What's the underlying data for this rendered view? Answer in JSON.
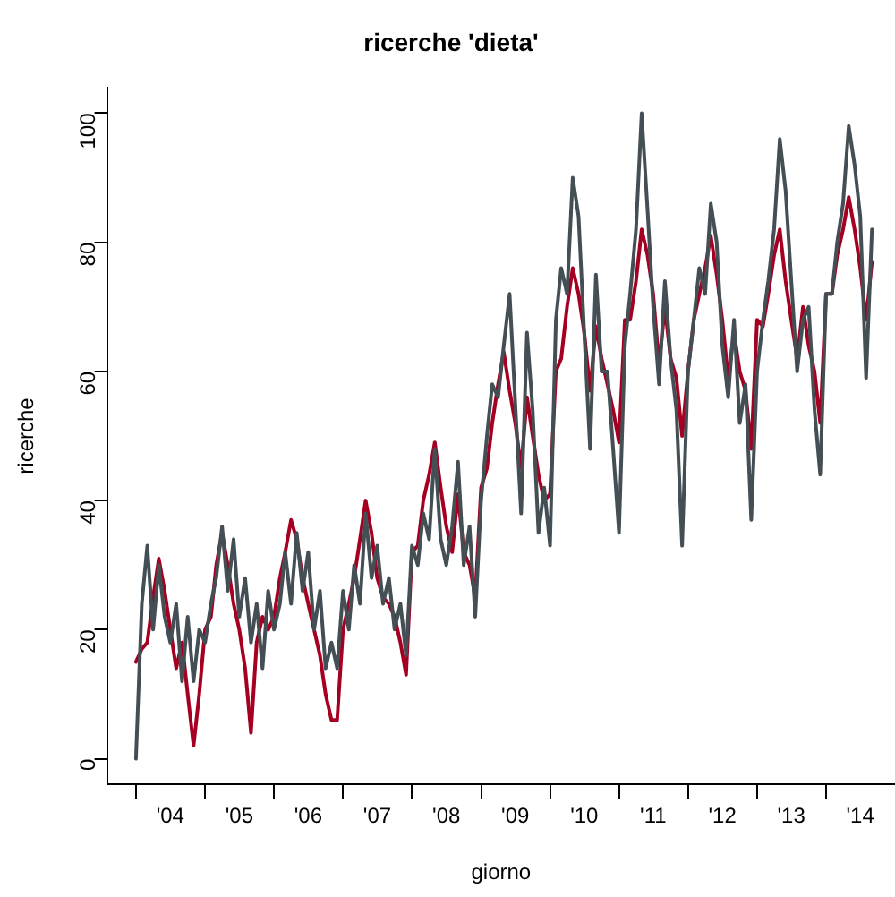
{
  "chart_data": {
    "type": "line",
    "title": "ricerche 'dieta'",
    "xlabel": "giorno",
    "ylabel": "ricerche",
    "x": [
      "2004-01",
      "2004-02",
      "2004-03",
      "2004-04",
      "2004-05",
      "2004-06",
      "2004-07",
      "2004-08",
      "2004-09",
      "2004-10",
      "2004-11",
      "2004-12",
      "2005-01",
      "2005-02",
      "2005-03",
      "2005-04",
      "2005-05",
      "2005-06",
      "2005-07",
      "2005-08",
      "2005-09",
      "2005-10",
      "2005-11",
      "2005-12",
      "2006-01",
      "2006-02",
      "2006-03",
      "2006-04",
      "2006-05",
      "2006-06",
      "2006-07",
      "2006-08",
      "2006-09",
      "2006-10",
      "2006-11",
      "2006-12",
      "2007-01",
      "2007-02",
      "2007-03",
      "2007-04",
      "2007-05",
      "2007-06",
      "2007-07",
      "2007-08",
      "2007-09",
      "2007-10",
      "2007-11",
      "2007-12",
      "2008-01",
      "2008-02",
      "2008-03",
      "2008-04",
      "2008-05",
      "2008-06",
      "2008-07",
      "2008-08",
      "2008-09",
      "2008-10",
      "2008-11",
      "2008-12",
      "2009-01",
      "2009-02",
      "2009-03",
      "2009-04",
      "2009-05",
      "2009-06",
      "2009-07",
      "2009-08",
      "2009-09",
      "2009-10",
      "2009-11",
      "2009-12",
      "2010-01",
      "2010-02",
      "2010-03",
      "2010-04",
      "2010-05",
      "2010-06",
      "2010-07",
      "2010-08",
      "2010-09",
      "2010-10",
      "2010-11",
      "2010-12",
      "2011-01",
      "2011-02",
      "2011-03",
      "2011-04",
      "2011-05",
      "2011-06",
      "2011-07",
      "2011-08",
      "2011-09",
      "2011-10",
      "2011-11",
      "2011-12",
      "2012-01",
      "2012-02",
      "2012-03",
      "2012-04",
      "2012-05",
      "2012-06",
      "2012-07",
      "2012-08",
      "2012-09",
      "2012-10",
      "2012-11",
      "2012-12",
      "2013-01",
      "2013-02",
      "2013-03",
      "2013-04",
      "2013-05",
      "2013-06",
      "2013-07",
      "2013-08",
      "2013-09",
      "2013-10",
      "2013-11",
      "2013-12",
      "2014-01",
      "2014-02",
      "2014-03",
      "2014-04",
      "2014-05",
      "2014-06",
      "2014-07",
      "2014-08",
      "2014-09"
    ],
    "series": [
      {
        "color": "#434f54",
        "values": [
          0,
          24,
          33,
          20,
          30,
          22,
          18,
          24,
          12,
          22,
          12,
          20,
          18,
          24,
          28,
          36,
          26,
          34,
          22,
          28,
          18,
          24,
          14,
          26,
          20,
          24,
          32,
          24,
          35,
          26,
          32,
          20,
          26,
          14,
          18,
          14,
          26,
          20,
          30,
          24,
          38,
          28,
          33,
          24,
          28,
          20,
          24,
          16,
          33,
          30,
          38,
          34,
          48,
          34,
          30,
          36,
          46,
          30,
          36,
          22,
          40,
          50,
          58,
          56,
          64,
          72,
          55,
          38,
          66,
          54,
          35,
          42,
          33,
          68,
          76,
          72,
          90,
          84,
          66,
          48,
          75,
          60,
          60,
          48,
          35,
          64,
          72,
          82,
          100,
          85,
          70,
          58,
          74,
          62,
          54,
          33,
          60,
          68,
          76,
          72,
          86,
          80,
          64,
          56,
          68,
          52,
          58,
          37,
          60,
          68,
          74,
          82,
          96,
          88,
          74,
          60,
          68,
          70,
          54,
          44,
          72,
          72,
          80,
          86,
          98,
          92,
          84,
          59,
          82
        ]
      },
      {
        "color": "#a50021",
        "values": [
          15,
          17,
          18,
          25,
          31,
          26,
          20,
          14,
          18,
          10,
          2,
          10,
          20,
          22,
          30,
          35,
          30,
          24,
          20,
          14,
          4,
          18,
          22,
          20,
          22,
          28,
          32,
          37,
          34,
          28,
          24,
          20,
          16,
          10,
          6,
          6,
          20,
          24,
          28,
          34,
          40,
          35,
          28,
          25,
          24,
          22,
          18,
          13,
          32,
          33,
          40,
          44,
          49,
          42,
          36,
          32,
          41,
          32,
          30,
          25,
          42,
          45,
          52,
          58,
          63,
          57,
          52,
          45,
          56,
          50,
          44,
          40,
          41,
          60,
          62,
          70,
          76,
          72,
          66,
          57,
          67,
          62,
          58,
          54,
          49,
          68,
          68,
          74,
          82,
          78,
          72,
          61,
          70,
          62,
          59,
          50,
          60,
          68,
          72,
          76,
          81,
          75,
          68,
          59,
          66,
          60,
          57,
          48,
          68,
          67,
          72,
          78,
          82,
          74,
          68,
          62,
          70,
          64,
          60,
          52,
          72,
          72,
          78,
          82,
          87,
          82,
          76,
          68,
          77
        ]
      }
    ],
    "xlim": [
      "2003-08",
      "2015-01"
    ],
    "xticks": [
      {
        "value": "2004-01",
        "label": null
      },
      {
        "value": "2004-07",
        "label": "'04"
      },
      {
        "value": "2005-01",
        "label": null
      },
      {
        "value": "2005-07",
        "label": "'05"
      },
      {
        "value": "2006-01",
        "label": null
      },
      {
        "value": "2006-07",
        "label": "'06"
      },
      {
        "value": "2007-01",
        "label": null
      },
      {
        "value": "2007-07",
        "label": "'07"
      },
      {
        "value": "2008-01",
        "label": null
      },
      {
        "value": "2008-07",
        "label": "'08"
      },
      {
        "value": "2009-01",
        "label": null
      },
      {
        "value": "2009-07",
        "label": "'09"
      },
      {
        "value": "2010-01",
        "label": null
      },
      {
        "value": "2010-07",
        "label": "'10"
      },
      {
        "value": "2011-01",
        "label": null
      },
      {
        "value": "2011-07",
        "label": "'11"
      },
      {
        "value": "2012-01",
        "label": null
      },
      {
        "value": "2012-07",
        "label": "'12"
      },
      {
        "value": "2013-01",
        "label": null
      },
      {
        "value": "2013-07",
        "label": "'13"
      },
      {
        "value": "2014-01",
        "label": null
      },
      {
        "value": "2014-07",
        "label": "'14"
      }
    ],
    "ylim": [
      -4,
      104
    ],
    "yticks": [
      0,
      20,
      40,
      60,
      80,
      100
    ]
  }
}
